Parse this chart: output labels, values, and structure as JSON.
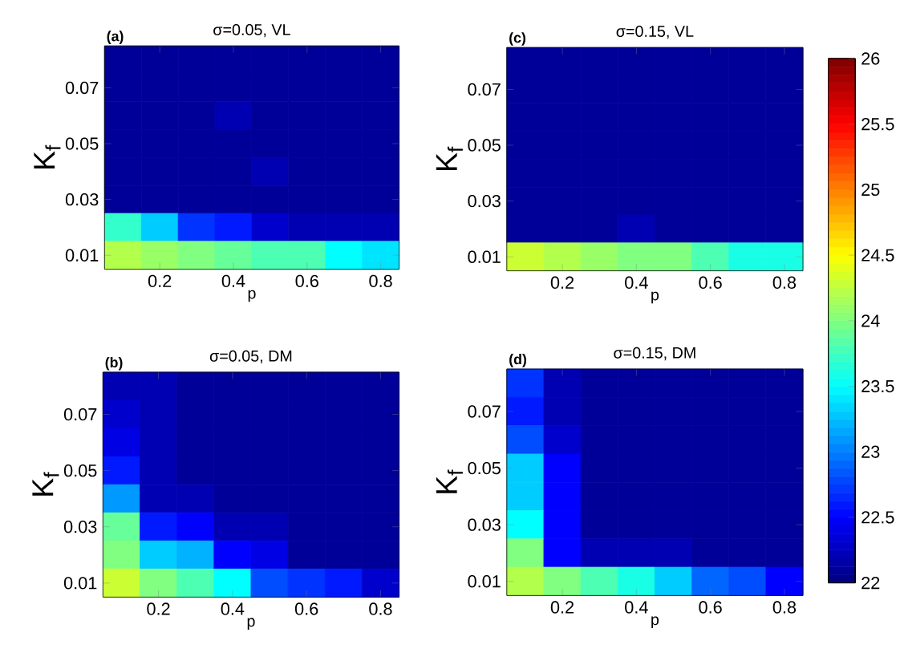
{
  "chart_data": [
    {
      "type": "heatmap",
      "title": "σ=0.05, VL",
      "xlabel": "p",
      "ylabel": "K$_{f}$",
      "annotations": [
        "(a)"
      ],
      "categories": [
        null,
        "0.2",
        null,
        "0.4",
        null,
        "0.6",
        null,
        "0.8"
      ],
      "y_categories": [
        null,
        "0.07",
        null,
        "0.05",
        null,
        "0.03",
        null,
        "0.01"
      ],
      "cells": [
        [
          22.1,
          22.1,
          22.1,
          22.1,
          22.1,
          22.1,
          22.1,
          22.1
        ],
        [
          22.1,
          22.1,
          22.1,
          22.1,
          22.1,
          22.1,
          22.1,
          22.1
        ],
        [
          22.1,
          22.1,
          22.1,
          22.2,
          22.1,
          22.1,
          22.1,
          22.1
        ],
        [
          22.1,
          22.1,
          22.1,
          22.1,
          22.1,
          22.1,
          22.1,
          22.1
        ],
        [
          22.1,
          22.1,
          22.1,
          22.1,
          22.2,
          22.1,
          22.1,
          22.1
        ],
        [
          22.1,
          22.1,
          22.1,
          22.1,
          22.1,
          22.1,
          22.1,
          22.1
        ],
        [
          23.7,
          23.3,
          22.7,
          22.6,
          22.3,
          22.2,
          22.2,
          22.2
        ],
        [
          24.2,
          24.1,
          24.0,
          23.9,
          23.8,
          23.8,
          23.5,
          23.4
        ]
      ],
      "clim": [
        22,
        26
      ],
      "cticks": [
        22,
        22.5
      ]
    },
    {
      "type": "heatmap",
      "title": "σ=0.05, DM",
      "xlabel": "p",
      "ylabel": "K$_{f}$",
      "annotations": [
        "(b)"
      ],
      "categories": [
        null,
        "0.2",
        null,
        "0.4",
        null,
        "0.6",
        null,
        "0.8"
      ],
      "y_categories": [
        null,
        "0.07",
        null,
        "0.05",
        null,
        "0.03",
        null,
        "0.01"
      ],
      "cells": [
        [
          22.2,
          22.2,
          22.1,
          22.1,
          22.1,
          22.1,
          22.1,
          22.1
        ],
        [
          22.3,
          22.2,
          22.1,
          22.1,
          22.1,
          22.1,
          22.1,
          22.1
        ],
        [
          22.4,
          22.2,
          22.1,
          22.1,
          22.1,
          22.1,
          22.1,
          22.1
        ],
        [
          22.6,
          22.2,
          22.1,
          22.1,
          22.1,
          22.1,
          22.1,
          22.1
        ],
        [
          23.1,
          22.2,
          22.2,
          22.1,
          22.1,
          22.1,
          22.1,
          22.1
        ],
        [
          23.9,
          22.6,
          22.5,
          22.2,
          22.2,
          22.1,
          22.1,
          22.1
        ],
        [
          24.0,
          23.3,
          23.2,
          22.5,
          22.4,
          22.1,
          22.1,
          22.1
        ],
        [
          24.3,
          24.0,
          23.8,
          23.5,
          22.8,
          22.7,
          22.6,
          22.3
        ]
      ],
      "clim": [
        22,
        26
      ],
      "cticks": [
        23,
        23.5
      ]
    },
    {
      "type": "heatmap",
      "title": "σ=0.15, VL",
      "xlabel": "p",
      "ylabel": "K$_{f}$",
      "annotations": [
        "(c)"
      ],
      "categories": [
        null,
        "0.2",
        null,
        "0.4",
        null,
        "0.6",
        null,
        "0.8"
      ],
      "y_categories": [
        null,
        "0.07",
        null,
        "0.05",
        null,
        "0.03",
        null,
        "0.01"
      ],
      "cells": [
        [
          22.1,
          22.1,
          22.1,
          22.1,
          22.1,
          22.1,
          22.1,
          22.1
        ],
        [
          22.1,
          22.1,
          22.1,
          22.1,
          22.1,
          22.1,
          22.1,
          22.1
        ],
        [
          22.1,
          22.1,
          22.1,
          22.1,
          22.1,
          22.1,
          22.1,
          22.1
        ],
        [
          22.1,
          22.1,
          22.1,
          22.1,
          22.1,
          22.1,
          22.1,
          22.1
        ],
        [
          22.1,
          22.1,
          22.1,
          22.1,
          22.1,
          22.1,
          22.1,
          22.1
        ],
        [
          22.1,
          22.1,
          22.1,
          22.1,
          22.1,
          22.1,
          22.1,
          22.1
        ],
        [
          22.1,
          22.1,
          22.1,
          22.2,
          22.1,
          22.1,
          22.1,
          22.1
        ],
        [
          24.3,
          24.2,
          24.1,
          24.0,
          24.0,
          23.8,
          23.6,
          23.6
        ]
      ],
      "clim": [
        22,
        26
      ],
      "cticks": [
        24,
        24.5
      ]
    },
    {
      "type": "heatmap",
      "title": "σ=0.15, DM",
      "xlabel": "p",
      "ylabel": "K$_{f}$",
      "annotations": [
        "(d)"
      ],
      "categories": [
        null,
        "0.2",
        null,
        "0.4",
        null,
        "0.6",
        null,
        "0.8"
      ],
      "y_categories": [
        null,
        "0.07",
        null,
        "0.05",
        null,
        "0.03",
        null,
        "0.01"
      ],
      "cells": [
        [
          22.7,
          22.2,
          22.1,
          22.1,
          22.1,
          22.1,
          22.1,
          22.1
        ],
        [
          22.6,
          22.2,
          22.1,
          22.1,
          22.1,
          22.1,
          22.1,
          22.1
        ],
        [
          22.8,
          22.3,
          22.1,
          22.1,
          22.1,
          22.1,
          22.1,
          22.1
        ],
        [
          23.3,
          22.5,
          22.1,
          22.1,
          22.1,
          22.1,
          22.1,
          22.1
        ],
        [
          23.3,
          22.5,
          22.1,
          22.1,
          22.1,
          22.1,
          22.1,
          22.1
        ],
        [
          23.5,
          22.5,
          22.1,
          22.1,
          22.1,
          22.1,
          22.1,
          22.1
        ],
        [
          24.0,
          22.5,
          22.2,
          22.2,
          22.2,
          22.1,
          22.1,
          22.1
        ],
        [
          24.2,
          24.0,
          23.8,
          23.6,
          23.3,
          22.9,
          22.8,
          22.5
        ]
      ],
      "clim": [
        22,
        26
      ],
      "cticks": [
        25,
        25.5,
        26
      ]
    }
  ]
}
